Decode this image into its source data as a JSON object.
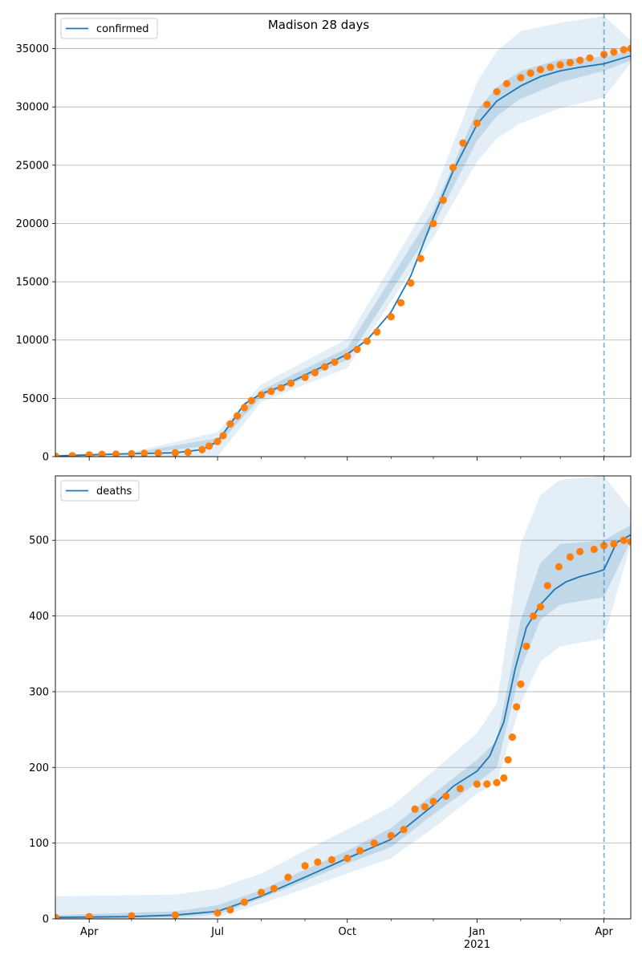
{
  "figure": {
    "suptitle": "Madison 28 days"
  },
  "colors": {
    "model": "#1f77b4",
    "observed": "#ff7f0e",
    "band": "#1f77b4",
    "grid": "#b0b0b0",
    "forecast_line": "#1f77b4"
  },
  "chart_data": [
    {
      "type": "line",
      "title": "",
      "xlabel": "",
      "ylabel": "",
      "grid": "horizontal",
      "legend": "top-left",
      "legend_entries": [
        "confirmed"
      ],
      "x_tick_labels": [],
      "xlim": [
        "2020-03-08",
        "2021-04-20"
      ],
      "ylim": [
        0,
        38000
      ],
      "y_ticks": [
        0,
        5000,
        10000,
        15000,
        20000,
        25000,
        30000,
        35000
      ],
      "forecast_start": "2021-04-01",
      "model_series": {
        "name": "confirmed",
        "dates": [
          "2020-03-08",
          "2020-04-01",
          "2020-05-01",
          "2020-06-01",
          "2020-06-20",
          "2020-07-01",
          "2020-07-10",
          "2020-07-20",
          "2020-08-01",
          "2020-08-15",
          "2020-09-01",
          "2020-09-15",
          "2020-10-01",
          "2020-10-15",
          "2020-11-01",
          "2020-11-15",
          "2020-12-01",
          "2020-12-15",
          "2021-01-01",
          "2021-01-15",
          "2021-02-01",
          "2021-02-15",
          "2021-03-01",
          "2021-03-15",
          "2021-04-01",
          "2021-04-20"
        ],
        "values": [
          50,
          150,
          250,
          330,
          600,
          1300,
          2800,
          4500,
          5400,
          6000,
          7000,
          7800,
          8800,
          10000,
          12400,
          15500,
          20500,
          24500,
          28500,
          30500,
          31800,
          32600,
          33100,
          33400,
          33700,
          34400
        ]
      },
      "observed": {
        "name": "confirmed observed",
        "dates": [
          "2020-03-08",
          "2020-03-20",
          "2020-04-01",
          "2020-04-10",
          "2020-04-20",
          "2020-05-01",
          "2020-05-10",
          "2020-05-20",
          "2020-06-01",
          "2020-06-10",
          "2020-06-20",
          "2020-06-25",
          "2020-07-01",
          "2020-07-05",
          "2020-07-10",
          "2020-07-15",
          "2020-07-20",
          "2020-07-25",
          "2020-08-01",
          "2020-08-08",
          "2020-08-15",
          "2020-08-22",
          "2020-09-01",
          "2020-09-08",
          "2020-09-15",
          "2020-09-22",
          "2020-10-01",
          "2020-10-08",
          "2020-10-15",
          "2020-10-22",
          "2020-11-01",
          "2020-11-08",
          "2020-11-15",
          "2020-11-22",
          "2020-12-01",
          "2020-12-08",
          "2020-12-15",
          "2020-12-22",
          "2021-01-01",
          "2021-01-08",
          "2021-01-15",
          "2021-01-22",
          "2021-02-01",
          "2021-02-08",
          "2021-02-15",
          "2021-02-22",
          "2021-03-01",
          "2021-03-08",
          "2021-03-15",
          "2021-03-22",
          "2021-04-01",
          "2021-04-08",
          "2021-04-15",
          "2021-04-20"
        ],
        "values": [
          50,
          80,
          150,
          200,
          220,
          250,
          280,
          300,
          330,
          380,
          600,
          900,
          1300,
          1800,
          2800,
          3500,
          4200,
          4800,
          5300,
          5600,
          5900,
          6300,
          6800,
          7200,
          7700,
          8100,
          8600,
          9200,
          9900,
          10700,
          12000,
          13200,
          14900,
          17000,
          20000,
          22000,
          24800,
          26900,
          28600,
          30200,
          31300,
          32000,
          32500,
          32900,
          33200,
          33400,
          33600,
          33800,
          34000,
          34200,
          34500,
          34700,
          34900,
          35000
        ]
      },
      "bands": {
        "dates": [
          "2020-03-08",
          "2020-05-01",
          "2020-07-01",
          "2020-08-01",
          "2020-10-01",
          "2020-12-01",
          "2021-01-01",
          "2021-01-15",
          "2021-02-01",
          "2021-03-01",
          "2021-04-01",
          "2021-04-20"
        ],
        "p05": [
          0,
          0,
          0,
          4700,
          7600,
          18800,
          25300,
          27300,
          28600,
          29900,
          30800,
          33800
        ],
        "p25": [
          0,
          200,
          1000,
          5100,
          8300,
          19800,
          27100,
          29200,
          30700,
          32100,
          33100,
          34000
        ],
        "p75": [
          100,
          300,
          1600,
          5700,
          9300,
          21100,
          29700,
          31700,
          33100,
          34100,
          34300,
          34800
        ],
        "p95": [
          150,
          400,
          2100,
          6200,
          10100,
          22500,
          32100,
          34800,
          36500,
          37200,
          37800,
          35700
        ]
      }
    },
    {
      "type": "line",
      "title": "",
      "xlabel": "",
      "ylabel": "",
      "grid": "horizontal",
      "legend": "top-left",
      "legend_entries": [
        "deaths"
      ],
      "x_tick_labels": [
        "Apr",
        "Jul",
        "Oct",
        "Jan\n2021",
        "Apr"
      ],
      "xlim": [
        "2020-03-08",
        "2021-04-20"
      ],
      "ylim": [
        0,
        585
      ],
      "y_ticks": [
        0,
        100,
        200,
        300,
        400,
        500
      ],
      "forecast_start": "2021-04-01",
      "model_series": {
        "name": "deaths",
        "dates": [
          "2020-03-08",
          "2020-05-01",
          "2020-06-01",
          "2020-07-01",
          "2020-08-01",
          "2020-09-01",
          "2020-10-01",
          "2020-11-01",
          "2020-12-01",
          "2020-12-15",
          "2021-01-01",
          "2021-01-10",
          "2021-01-20",
          "2021-01-28",
          "2021-02-05",
          "2021-02-15",
          "2021-02-25",
          "2021-03-05",
          "2021-03-15",
          "2021-03-25",
          "2021-04-01",
          "2021-04-10",
          "2021-04-20"
        ],
        "values": [
          2,
          3,
          5,
          10,
          30,
          55,
          80,
          105,
          150,
          175,
          195,
          215,
          260,
          330,
          385,
          415,
          435,
          445,
          452,
          457,
          461,
          497,
          507
        ]
      },
      "observed": {
        "name": "deaths observed",
        "dates": [
          "2020-03-08",
          "2020-04-01",
          "2020-05-01",
          "2020-06-01",
          "2020-07-01",
          "2020-07-10",
          "2020-07-20",
          "2020-08-01",
          "2020-08-10",
          "2020-08-20",
          "2020-09-01",
          "2020-09-10",
          "2020-09-20",
          "2020-10-01",
          "2020-10-10",
          "2020-10-20",
          "2020-11-01",
          "2020-11-10",
          "2020-11-18",
          "2020-11-25",
          "2020-12-01",
          "2020-12-10",
          "2020-12-20",
          "2021-01-01",
          "2021-01-08",
          "2021-01-15",
          "2021-01-20",
          "2021-01-23",
          "2021-01-26",
          "2021-01-29",
          "2021-02-01",
          "2021-02-05",
          "2021-02-10",
          "2021-02-15",
          "2021-02-20",
          "2021-02-28",
          "2021-03-08",
          "2021-03-15",
          "2021-03-25",
          "2021-04-01",
          "2021-04-08",
          "2021-04-15",
          "2021-04-20"
        ],
        "values": [
          2,
          3,
          4,
          5,
          8,
          12,
          22,
          35,
          40,
          55,
          70,
          75,
          78,
          80,
          90,
          100,
          110,
          118,
          145,
          148,
          155,
          162,
          172,
          178,
          178,
          180,
          186,
          210,
          240,
          280,
          310,
          360,
          400,
          412,
          440,
          465,
          478,
          485,
          488,
          493,
          495,
          500,
          498
        ]
      },
      "bands": {
        "dates": [
          "2020-03-08",
          "2020-06-01",
          "2020-07-01",
          "2020-08-01",
          "2020-09-01",
          "2020-10-01",
          "2020-11-01",
          "2020-12-01",
          "2021-01-01",
          "2021-01-15",
          "2021-02-01",
          "2021-02-15",
          "2021-03-01",
          "2021-04-01",
          "2021-04-20"
        ],
        "p05": [
          0,
          0,
          2,
          20,
          40,
          60,
          80,
          120,
          165,
          180,
          285,
          340,
          360,
          370,
          495
        ],
        "p25": [
          0,
          2,
          6,
          27,
          50,
          73,
          95,
          138,
          180,
          200,
          330,
          395,
          415,
          425,
          500
        ],
        "p75": [
          5,
          10,
          18,
          38,
          65,
          90,
          120,
          165,
          210,
          235,
          395,
          470,
          495,
          500,
          520
        ],
        "p95": [
          30,
          32,
          40,
          60,
          90,
          118,
          148,
          195,
          245,
          285,
          495,
          560,
          580,
          585,
          540
        ]
      }
    }
  ]
}
